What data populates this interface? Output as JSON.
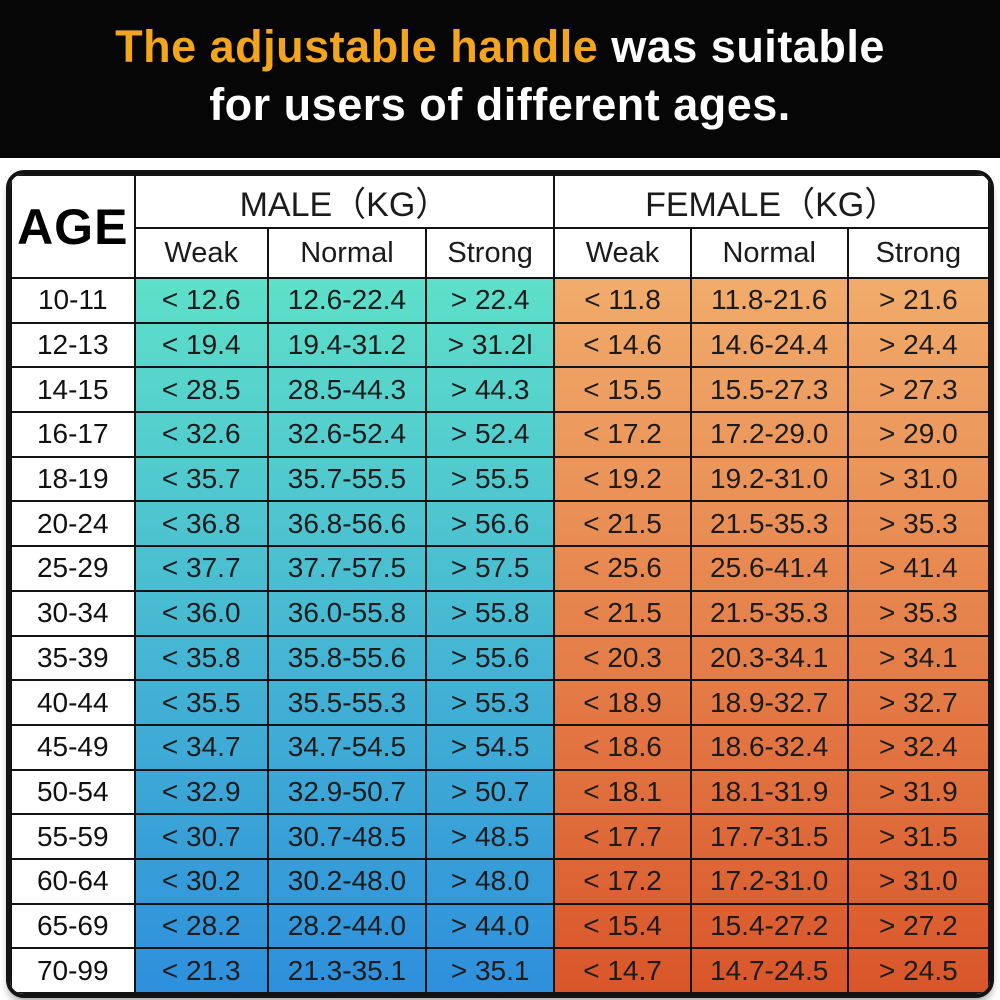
{
  "banner": {
    "highlight": "The adjustable handle",
    "rest": " was suitable",
    "line2": "for users of different ages.",
    "highlight_color": "#F2A51D",
    "text_color": "#FFFFFF",
    "background": "#060606"
  },
  "table": {
    "age_header": "AGE",
    "male_header": "MALE（KG）",
    "female_header": "FEMALE（KG）",
    "subcolumns": [
      "Weak",
      "Normal",
      "Strong"
    ],
    "colors": {
      "male_top": "#5EE0C9",
      "male_bottom": "#2E8FDC",
      "female_top": "#F1AC6C",
      "female_bottom": "#D9562A",
      "border": "#131313",
      "header_bg": "#FFFFFF",
      "cell_text": "#1B1B1B"
    }
  },
  "chart_data": {
    "type": "table",
    "title": "The adjustable handle was suitable for users of different ages.",
    "unit": "KG",
    "columns": [
      "AGE",
      "MALE Weak",
      "MALE Normal",
      "MALE Strong",
      "FEMALE Weak",
      "FEMALE Normal",
      "FEMALE Strong"
    ],
    "rows": [
      [
        "10-11",
        "< 12.6",
        "12.6-22.4",
        "> 22.4",
        "< 11.8",
        "11.8-21.6",
        "> 21.6"
      ],
      [
        "12-13",
        "< 19.4",
        "19.4-31.2",
        "> 31.2l",
        "< 14.6",
        "14.6-24.4",
        "> 24.4"
      ],
      [
        "14-15",
        "< 28.5",
        "28.5-44.3",
        "> 44.3",
        "< 15.5",
        "15.5-27.3",
        "> 27.3"
      ],
      [
        "16-17",
        "< 32.6",
        "32.6-52.4",
        "> 52.4",
        "< 17.2",
        "17.2-29.0",
        "> 29.0"
      ],
      [
        "18-19",
        "< 35.7",
        "35.7-55.5",
        "> 55.5",
        "< 19.2",
        "19.2-31.0",
        "> 31.0"
      ],
      [
        "20-24",
        "< 36.8",
        "36.8-56.6",
        "> 56.6",
        "< 21.5",
        "21.5-35.3",
        "> 35.3"
      ],
      [
        "25-29",
        "< 37.7",
        "37.7-57.5",
        "> 57.5",
        "< 25.6",
        "25.6-41.4",
        "> 41.4"
      ],
      [
        "30-34",
        "< 36.0",
        "36.0-55.8",
        "> 55.8",
        "< 21.5",
        "21.5-35.3",
        "> 35.3"
      ],
      [
        "35-39",
        "< 35.8",
        "35.8-55.6",
        "> 55.6",
        "< 20.3",
        "20.3-34.1",
        "> 34.1"
      ],
      [
        "40-44",
        "< 35.5",
        "35.5-55.3",
        "> 55.3",
        "< 18.9",
        "18.9-32.7",
        "> 32.7"
      ],
      [
        "45-49",
        "< 34.7",
        "34.7-54.5",
        "> 54.5",
        "< 18.6",
        "18.6-32.4",
        "> 32.4"
      ],
      [
        "50-54",
        "< 32.9",
        "32.9-50.7",
        "> 50.7",
        "< 18.1",
        "18.1-31.9",
        "> 31.9"
      ],
      [
        "55-59",
        "< 30.7",
        "30.7-48.5",
        "> 48.5",
        "< 17.7",
        "17.7-31.5",
        "> 31.5"
      ],
      [
        "60-64",
        "< 30.2",
        "30.2-48.0",
        "> 48.0",
        "< 17.2",
        "17.2-31.0",
        "> 31.0"
      ],
      [
        "65-69",
        "< 28.2",
        "28.2-44.0",
        "> 44.0",
        "< 15.4",
        "15.4-27.2",
        "> 27.2"
      ],
      [
        "70-99",
        "< 21.3",
        "21.3-35.1",
        "> 35.1",
        "< 14.7",
        "14.7-24.5",
        "> 24.5"
      ]
    ]
  }
}
